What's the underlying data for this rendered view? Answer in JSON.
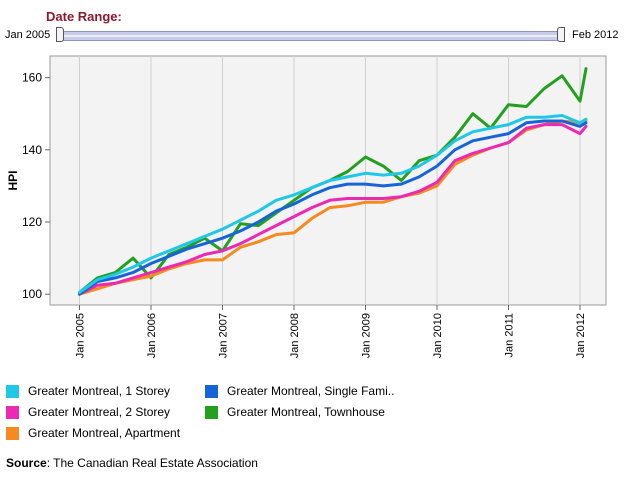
{
  "date_range": {
    "title": "Date Range:",
    "start_label": "Jan 2005",
    "end_label": "Feb 2012"
  },
  "source": {
    "label": "Source",
    "text": ": The Canadian Real Estate Association"
  },
  "chart_data": {
    "type": "line",
    "ylabel": "HPI",
    "xlabel": "",
    "ylim": [
      97,
      166
    ],
    "yticks": [
      100,
      120,
      140,
      160
    ],
    "xticks": [
      "Jan 2005",
      "Jan 2006",
      "Jan 2007",
      "Jan 2008",
      "Jan 2009",
      "Jan 2010",
      "Jan 2011",
      "Jan 2012"
    ],
    "x": [
      "2005-01",
      "2005-04",
      "2005-07",
      "2005-10",
      "2006-01",
      "2006-04",
      "2006-07",
      "2006-10",
      "2007-01",
      "2007-04",
      "2007-07",
      "2007-10",
      "2008-01",
      "2008-04",
      "2008-07",
      "2008-10",
      "2009-01",
      "2009-04",
      "2009-07",
      "2009-10",
      "2010-01",
      "2010-04",
      "2010-07",
      "2010-10",
      "2011-01",
      "2011-04",
      "2011-07",
      "2011-10",
      "2012-01",
      "2012-02"
    ],
    "grid": {
      "vertical": true,
      "horizontal": false
    },
    "legend_position": "bottom",
    "plot_background": "#f3f3f3",
    "series": [
      {
        "name": "Greater Montreal, 1 Storey",
        "color": "#1ec8e6",
        "values": [
          100.5,
          104,
          105.5,
          107.5,
          110,
          112,
          114,
          116,
          118,
          120.5,
          123,
          126,
          127.5,
          129.5,
          131.5,
          132.5,
          133.5,
          133,
          133.5,
          135.5,
          138.5,
          142.5,
          145,
          146,
          147,
          149,
          149,
          149.5,
          147.5,
          148.5
        ]
      },
      {
        "name": "Greater Montreal, Single Fami..",
        "color": "#1565d8",
        "values": [
          100,
          103.5,
          104.5,
          106,
          108.5,
          110.5,
          112.5,
          114,
          115.5,
          117.5,
          120,
          123,
          125,
          127.5,
          129.5,
          130.5,
          130.5,
          130,
          130.5,
          132.5,
          135.5,
          140,
          142.5,
          143.5,
          144.5,
          147.5,
          148,
          148,
          146.5,
          147.5
        ]
      },
      {
        "name": "Greater Montreal, 2 Storey",
        "color": "#ea2ab4",
        "values": [
          100,
          102.5,
          103,
          104.5,
          106,
          107.5,
          109,
          111,
          112,
          114,
          116.5,
          119,
          121.5,
          124,
          126,
          126.5,
          126.5,
          126.5,
          127,
          128.5,
          131,
          137,
          139,
          140.5,
          142,
          146,
          147,
          147,
          144.5,
          146.5
        ]
      },
      {
        "name": "Greater Montreal, Townhouse",
        "color": "#22a01e",
        "values": [
          100.5,
          104.5,
          106,
          110,
          104.5,
          111,
          113,
          115.5,
          112,
          119.5,
          119,
          122.5,
          126,
          129.5,
          131.5,
          134,
          138,
          135.5,
          131.5,
          137,
          138.5,
          143.5,
          150,
          146,
          152.5,
          152,
          157,
          160.5,
          153.5,
          162.5
        ]
      },
      {
        "name": "Greater Montreal, Apartment",
        "color": "#f58a1e",
        "values": [
          100,
          101.5,
          103,
          104,
          105,
          107,
          108.5,
          109.5,
          109.5,
          113,
          114.5,
          116.5,
          117,
          121,
          124,
          124.5,
          125.5,
          125.5,
          127,
          128,
          130,
          136,
          138.5,
          140.5,
          142,
          145.5,
          147,
          148,
          147.5,
          148
        ]
      }
    ]
  }
}
